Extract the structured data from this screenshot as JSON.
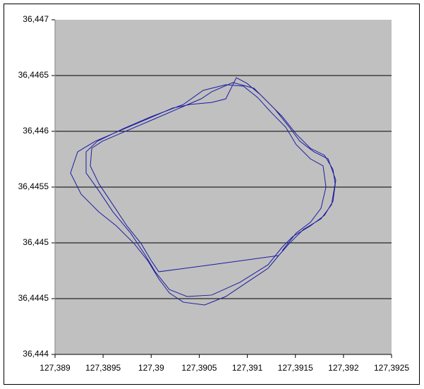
{
  "chart_data": {
    "type": "line",
    "x": [
      127.391326,
      127.390629,
      127.390079,
      127.390005,
      127.389895,
      127.389748,
      127.389602,
      127.389455,
      127.389367,
      127.389382,
      127.389492,
      127.389748,
      127.390042,
      127.390262,
      127.390519,
      127.390629,
      127.390849,
      127.391069,
      127.391216,
      127.391363,
      127.391509,
      127.391656,
      127.391803,
      127.391891,
      127.391913,
      127.391876,
      127.391766,
      127.391583,
      127.391436,
      127.391326,
      127.391216,
      127.390996,
      127.390776,
      127.390556,
      127.390335,
      127.390189,
      127.390079,
      127.389969,
      127.389822,
      127.389638,
      127.389455,
      127.389271,
      127.389161,
      127.389235,
      127.389418,
      127.389675,
      127.389969,
      127.390225,
      127.390409,
      127.390629,
      127.390776,
      127.390886,
      127.390996,
      127.391143,
      127.391289,
      127.391436,
      127.391546,
      127.391693,
      127.39184,
      127.39192,
      127.391891,
      127.391803,
      127.391656,
      127.391473,
      127.391363,
      127.391216,
      127.390922,
      127.390629,
      127.390372,
      127.390189,
      127.390042,
      127.389932,
      127.389785,
      127.389602,
      127.389455,
      127.389323,
      127.389323,
      127.38944,
      127.389712,
      127.390005,
      127.390335,
      127.390541,
      127.390776,
      127.390959,
      127.391106,
      127.391253,
      127.391399,
      127.391509,
      127.391656,
      127.391788,
      127.391818,
      127.391766,
      127.391656,
      127.391509,
      127.391363
    ],
    "series": [
      {
        "color": "#1c1ca0",
        "values": [
          36.444886,
          36.444804,
          36.444741,
          36.444835,
          36.444994,
          36.445152,
          36.445342,
          36.445532,
          36.44569,
          36.445848,
          36.445911,
          36.446006,
          36.446114,
          36.446196,
          36.446291,
          36.446354,
          36.446437,
          36.446386,
          36.446259,
          36.446133,
          36.445975,
          36.445848,
          36.445785,
          36.445658,
          36.445532,
          36.445342,
          36.445215,
          36.44512,
          36.444994,
          36.444886,
          36.444772,
          36.444646,
          36.444519,
          36.444443,
          36.444468,
          36.444551,
          36.444677,
          36.444835,
          36.444994,
          36.445152,
          36.445278,
          36.445437,
          36.445627,
          36.445816,
          36.445911,
          36.446006,
          36.446114,
          36.446209,
          36.446241,
          36.446259,
          36.446291,
          36.446481,
          36.44643,
          36.446323,
          36.446196,
          36.446038,
          36.445911,
          36.445816,
          36.445753,
          36.445563,
          36.445373,
          36.445247,
          36.445152,
          36.445057,
          36.444962,
          36.444804,
          36.444646,
          36.444532,
          36.444519,
          36.444582,
          36.444741,
          36.444899,
          36.445089,
          36.445278,
          36.445468,
          36.445627,
          36.445816,
          36.445911,
          36.446025,
          36.446133,
          36.446241,
          36.446367,
          36.446418,
          36.446405,
          36.446304,
          36.446165,
          36.446038,
          36.44588,
          36.445753,
          36.44569,
          36.4455,
          36.44531,
          36.445184,
          36.445089,
          36.44493
        ]
      }
    ],
    "xlim": [
      127.389,
      127.3925
    ],
    "xticks": [
      {
        "value": 127.389,
        "label": "127,389"
      },
      {
        "value": 127.3895,
        "label": "127,3895"
      },
      {
        "value": 127.39,
        "label": "127,39"
      },
      {
        "value": 127.3905,
        "label": "127,3905"
      },
      {
        "value": 127.391,
        "label": "127,391"
      },
      {
        "value": 127.3915,
        "label": "127,3915"
      },
      {
        "value": 127.392,
        "label": "127,392"
      },
      {
        "value": 127.3925,
        "label": "127,3925"
      }
    ],
    "ylim": [
      36.444,
      36.447
    ],
    "yticks": [
      {
        "value": 36.444,
        "label": "36,444"
      },
      {
        "value": 36.4445,
        "label": "36,4445"
      },
      {
        "value": 36.445,
        "label": "36,445"
      },
      {
        "value": 36.4455,
        "label": "36,4455"
      },
      {
        "value": 36.446,
        "label": "36,446"
      },
      {
        "value": 36.4465,
        "label": "36,4465"
      },
      {
        "value": 36.447,
        "label": "36,447"
      }
    ],
    "grid": true,
    "background": "#c0c0c0"
  }
}
